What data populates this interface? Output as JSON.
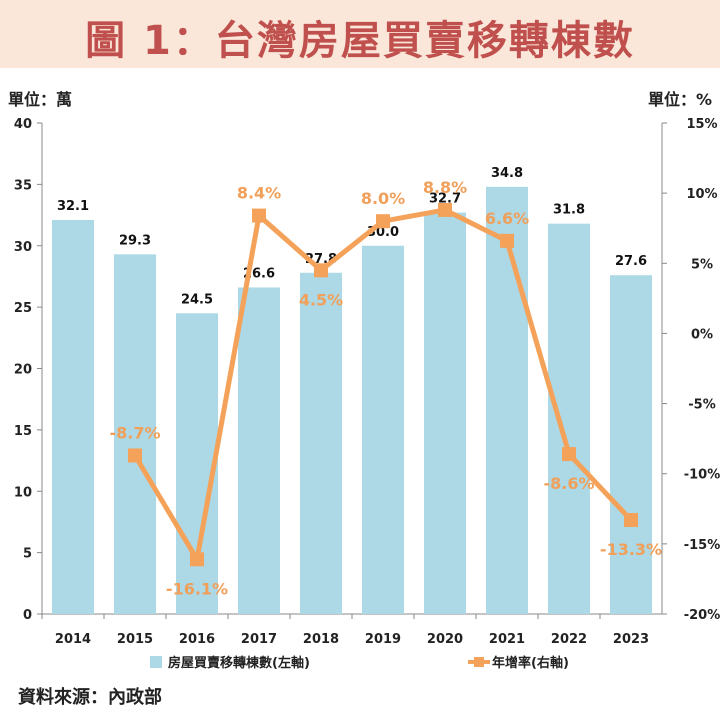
{
  "header": {
    "title": "圖 1：台灣房屋買賣移轉棟數"
  },
  "units": {
    "left": "單位：萬",
    "right": "單位：%"
  },
  "source": "資料來源：內政部",
  "colors": {
    "bar": "#add8e6",
    "line": "#f4a25a",
    "title": "#c0504d",
    "title_band": "#fbe7da"
  },
  "chart_data": {
    "type": "bar",
    "categories": [
      "2014",
      "2015",
      "2016",
      "2017",
      "2018",
      "2019",
      "2020",
      "2021",
      "2022",
      "2023"
    ],
    "series": [
      {
        "name": "房屋買賣移轉棟數(左軸)",
        "type": "bar",
        "axis": "left",
        "values": [
          32.1,
          29.3,
          24.5,
          26.6,
          27.8,
          30.0,
          32.7,
          34.8,
          31.8,
          27.6
        ],
        "labels": [
          "32.1",
          "29.3",
          "24.5",
          "26.6",
          "27.8",
          "30.0",
          "32.7",
          "34.8",
          "31.8",
          "27.6"
        ]
      },
      {
        "name": "年增率(右軸)",
        "type": "line",
        "axis": "right",
        "values": [
          null,
          -8.7,
          -16.1,
          8.4,
          4.5,
          8.0,
          8.8,
          6.6,
          -8.6,
          -13.3
        ],
        "labels": [
          "",
          "-8.7%",
          "-16.1%",
          "8.4%",
          "4.5%",
          "8.0%",
          "8.8%",
          "6.6%",
          "-8.6%",
          "-13.3%"
        ]
      }
    ],
    "y_left": {
      "min": 0,
      "max": 40,
      "ticks": [
        "0",
        "5",
        "10",
        "15",
        "20",
        "25",
        "30",
        "35",
        "40"
      ]
    },
    "y_right": {
      "min": -20,
      "max": 15,
      "ticks": [
        "-20%",
        "-15%",
        "-10%",
        "-5%",
        "0%",
        "5%",
        "10%",
        "15%"
      ]
    },
    "grid": true,
    "legend": "bottom"
  }
}
